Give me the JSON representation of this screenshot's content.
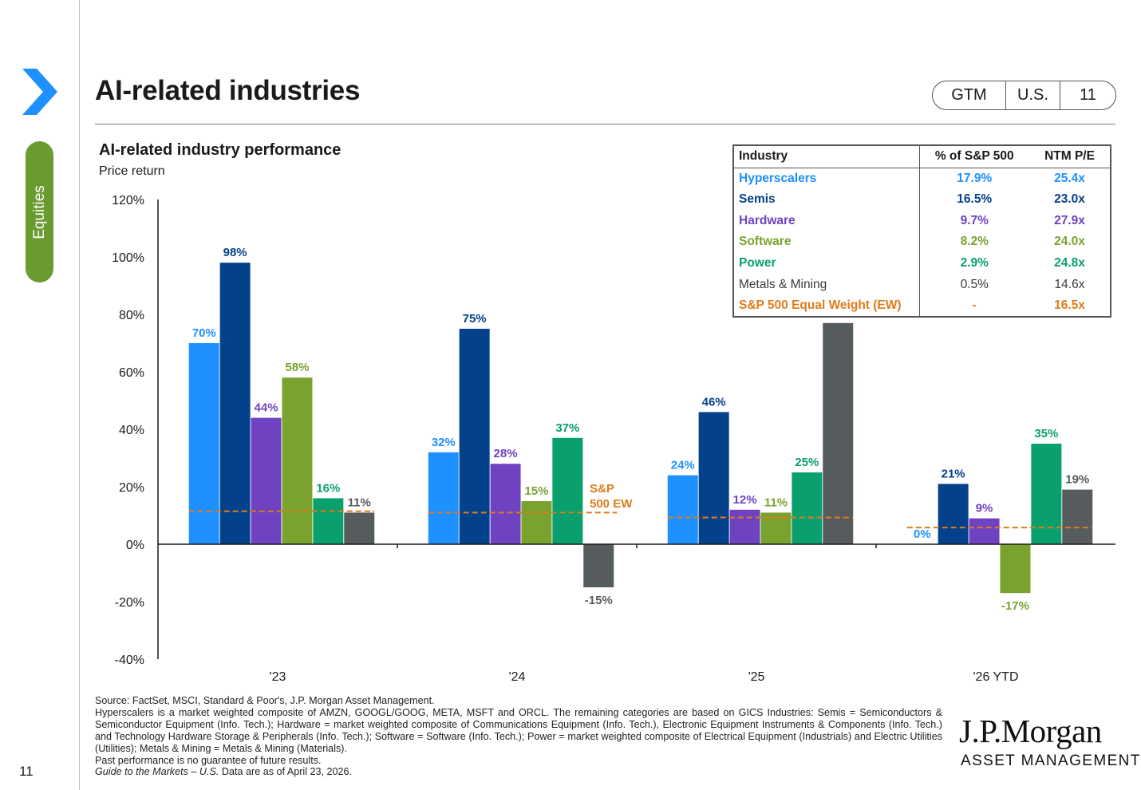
{
  "page": {
    "title": "AI-related industries",
    "section_tab": "Equities",
    "tags": [
      "GTM",
      "U.S.",
      "11"
    ],
    "page_number": "11",
    "brand_color": "#1e90ff",
    "section_color": "#6a9a30"
  },
  "chart_data": {
    "type": "bar",
    "title": "AI-related industry performance",
    "subtitle": "Price return",
    "xlabel": "",
    "ylabel": "",
    "ylim": [
      -40,
      120
    ],
    "yticks": [
      "-40%",
      "-20%",
      "0%",
      "20%",
      "40%",
      "60%",
      "80%",
      "100%",
      "120%"
    ],
    "yticks_values": [
      -40,
      -20,
      0,
      20,
      40,
      60,
      80,
      100,
      120
    ],
    "categories": [
      "'23",
      "'24",
      "'25",
      "'26 YTD"
    ],
    "series": [
      {
        "name": "Hyperscalers",
        "color": "#1e90ff",
        "values": [
          70,
          32,
          24,
          0
        ],
        "labels": [
          "70%",
          "32%",
          "24%",
          "0%"
        ]
      },
      {
        "name": "Semis",
        "color": "#03428a",
        "values": [
          98,
          75,
          46,
          21
        ],
        "labels": [
          "98%",
          "75%",
          "46%",
          "21%"
        ]
      },
      {
        "name": "Hardware",
        "color": "#6f42c1",
        "values": [
          44,
          28,
          12,
          9
        ],
        "labels": [
          "44%",
          "28%",
          "12%",
          "9%"
        ]
      },
      {
        "name": "Software",
        "color": "#7aa22f",
        "values": [
          58,
          15,
          11,
          -17
        ],
        "labels": [
          "58%",
          "15%",
          "11%",
          "-17%"
        ]
      },
      {
        "name": "Power",
        "color": "#0aa06e",
        "values": [
          16,
          37,
          25,
          35
        ],
        "labels": [
          "16%",
          "37%",
          "25%",
          "35%"
        ]
      },
      {
        "name": "Metals & Mining",
        "color": "#565b5e",
        "values": [
          11,
          -15,
          77,
          19
        ],
        "labels": [
          "11%",
          "-15%",
          "77%",
          "19%"
        ]
      }
    ],
    "reference_line": {
      "name": "S&P 500 EW",
      "label_lines": [
        "S&P",
        "500 EW"
      ],
      "color": "#e07b1a",
      "values": [
        11.5,
        11,
        9.3,
        5.8
      ]
    },
    "grid": false
  },
  "industry_table": {
    "headers": [
      "Industry",
      "% of S&P 500",
      "NTM P/E"
    ],
    "rows": [
      {
        "industry": "Hyperscalers",
        "pct": "17.9%",
        "pe": "25.4x",
        "color": "#1e90ff"
      },
      {
        "industry": "Semis",
        "pct": "16.5%",
        "pe": "23.0x",
        "color": "#03428a"
      },
      {
        "industry": "Hardware",
        "pct": "9.7%",
        "pe": "27.9x",
        "color": "#6f42c1"
      },
      {
        "industry": "Software",
        "pct": "8.2%",
        "pe": "24.0x",
        "color": "#7aa22f"
      },
      {
        "industry": "Power",
        "pct": "2.9%",
        "pe": "24.8x",
        "color": "#0aa06e"
      },
      {
        "industry": "Metals & Mining",
        "pct": "0.5%",
        "pe": "14.6x",
        "color": "#3a3a3a"
      },
      {
        "industry": "S&P 500 Equal Weight (EW)",
        "pct": "-",
        "pe": "16.5x",
        "color": "#e07b1a"
      }
    ]
  },
  "footnotes": {
    "line1": "Source: FactSet, MSCI, Standard & Poor's, J.P. Morgan Asset Management.",
    "line2": "Hyperscalers is a market weighted composite of AMZN, GOOGL/GOOG, META, MSFT and ORCL. The remaining categories are based on GICS Industries: Semis = Semiconductors & Semiconductor Equipment (Info. Tech.); Hardware = market weighted composite of Communications Equipment (Info. Tech.), Electronic Equipment Instruments & Components (Info. Tech.) and Technology Hardware Storage & Peripherals (Info. Tech.); Software = Software (Info. Tech.); Power = market weighted composite of Electrical Equipment (Industrials) and Electric Utilities (Utilities); Metals & Mining = Metals & Mining (Materials).",
    "line3": "Past performance is no guarantee of future results.",
    "guide_italic": "Guide to the Markets – U.S.",
    "guide_rest": " Data are as of April 23, 2026."
  },
  "logo": {
    "main": "J.P.Morgan",
    "sub": "ASSET MANAGEMENT"
  }
}
